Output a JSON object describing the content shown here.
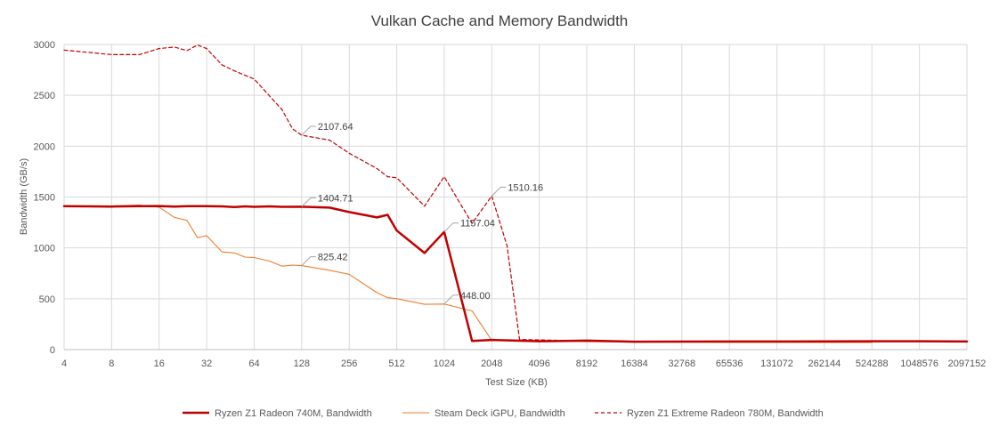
{
  "chart_data": {
    "type": "line",
    "title": "Vulkan Cache and Memory Bandwidth",
    "xlabel": "Test Size (KB)",
    "ylabel": "Bandwidth (GB/s)",
    "x_scale": "log2",
    "xlim": [
      4,
      2097152
    ],
    "ylim": [
      0,
      3000
    ],
    "x_ticks": [
      4,
      8,
      16,
      32,
      64,
      128,
      256,
      512,
      1024,
      2048,
      4096,
      8192,
      16384,
      32768,
      65536,
      131072,
      262144,
      524288,
      1048576,
      2097152
    ],
    "x_tick_labels": [
      "4",
      "8",
      "16",
      "32",
      "64",
      "128",
      "256",
      "512",
      "1024",
      "2048",
      "4096",
      "8192",
      "16384",
      "32768",
      "65536",
      "131072",
      "262144",
      "524288",
      "1048576",
      "2097152"
    ],
    "y_ticks": [
      0,
      500,
      1000,
      1500,
      2000,
      2500,
      3000
    ],
    "y_tick_labels": [
      "0",
      "500",
      "1000",
      "1500",
      "2000",
      "2500",
      "3000"
    ],
    "grid": true,
    "legend_position": "bottom",
    "series": [
      {
        "name": "Ryzen Z1 Radeon 740M, Bandwidth",
        "color": "#c00000",
        "style": "solid-thick",
        "points": [
          [
            4,
            1410
          ],
          [
            6,
            1408
          ],
          [
            8,
            1406
          ],
          [
            12,
            1410
          ],
          [
            16,
            1412
          ],
          [
            20,
            1406
          ],
          [
            24,
            1410
          ],
          [
            32,
            1410
          ],
          [
            40,
            1408
          ],
          [
            48,
            1402
          ],
          [
            56,
            1408
          ],
          [
            64,
            1404
          ],
          [
            80,
            1408
          ],
          [
            96,
            1404
          ],
          [
            128,
            1404.71
          ],
          [
            192,
            1396
          ],
          [
            256,
            1352
          ],
          [
            384,
            1300
          ],
          [
            448,
            1325
          ],
          [
            512,
            1170
          ],
          [
            768,
            950
          ],
          [
            1024,
            1157.04
          ],
          [
            1536,
            85
          ],
          [
            2048,
            95
          ],
          [
            4096,
            82
          ],
          [
            8192,
            88
          ],
          [
            16384,
            78
          ],
          [
            65536,
            80
          ],
          [
            131072,
            80
          ],
          [
            524288,
            82
          ],
          [
            1048576,
            82
          ],
          [
            2097152,
            80
          ]
        ]
      },
      {
        "name": "Steam Deck iGPU, Bandwidth",
        "color": "#ed7d31",
        "style": "solid-thin",
        "points": [
          [
            4,
            1410
          ],
          [
            8,
            1412
          ],
          [
            12,
            1420
          ],
          [
            16,
            1400
          ],
          [
            20,
            1300
          ],
          [
            24,
            1270
          ],
          [
            28,
            1100
          ],
          [
            32,
            1120
          ],
          [
            40,
            960
          ],
          [
            48,
            950
          ],
          [
            56,
            910
          ],
          [
            64,
            905
          ],
          [
            80,
            870
          ],
          [
            96,
            820
          ],
          [
            112,
            830
          ],
          [
            128,
            825.42
          ],
          [
            192,
            780
          ],
          [
            256,
            740
          ],
          [
            384,
            560
          ],
          [
            448,
            510
          ],
          [
            512,
            500
          ],
          [
            768,
            445
          ],
          [
            1024,
            448.0
          ],
          [
            1536,
            380
          ],
          [
            2048,
            90
          ],
          [
            4096,
            85
          ],
          [
            8192,
            78
          ],
          [
            16384,
            75
          ],
          [
            65536,
            72
          ],
          [
            131072,
            72
          ],
          [
            262144,
            70
          ],
          [
            524288,
            70
          ]
        ]
      },
      {
        "name": "Ryzen Z1 Extreme Radeon 780M, Bandwidth",
        "color": "#c00000",
        "style": "dashed",
        "points": [
          [
            4,
            2945
          ],
          [
            8,
            2900
          ],
          [
            12,
            2900
          ],
          [
            16,
            2960
          ],
          [
            20,
            2975
          ],
          [
            24,
            2940
          ],
          [
            28,
            2995
          ],
          [
            32,
            2960
          ],
          [
            40,
            2800
          ],
          [
            48,
            2740
          ],
          [
            64,
            2660
          ],
          [
            96,
            2360
          ],
          [
            112,
            2170
          ],
          [
            128,
            2107.64
          ],
          [
            192,
            2060
          ],
          [
            256,
            1930
          ],
          [
            384,
            1780
          ],
          [
            448,
            1700
          ],
          [
            512,
            1690
          ],
          [
            768,
            1410
          ],
          [
            1024,
            1700
          ],
          [
            1536,
            1240
          ],
          [
            2048,
            1510.16
          ],
          [
            2560,
            1020
          ],
          [
            3072,
            100
          ],
          [
            4096,
            95
          ],
          [
            8192,
            85
          ],
          [
            16384,
            82
          ],
          [
            65536,
            82
          ],
          [
            131072,
            80
          ],
          [
            524288,
            82
          ],
          [
            1048576,
            82
          ],
          [
            2097152,
            80
          ]
        ]
      }
    ],
    "data_labels": [
      {
        "text": "2107.64",
        "series": 2,
        "x": 128,
        "y": 2107.64
      },
      {
        "text": "1404.71",
        "series": 0,
        "x": 128,
        "y": 1404.71
      },
      {
        "text": "825.42",
        "series": 1,
        "x": 128,
        "y": 825.42
      },
      {
        "text": "1157.04",
        "series": 0,
        "x": 1024,
        "y": 1157.04
      },
      {
        "text": "448.00",
        "series": 1,
        "x": 1024,
        "y": 448.0
      },
      {
        "text": "1510.16",
        "series": 2,
        "x": 2048,
        "y": 1510.16
      }
    ]
  }
}
